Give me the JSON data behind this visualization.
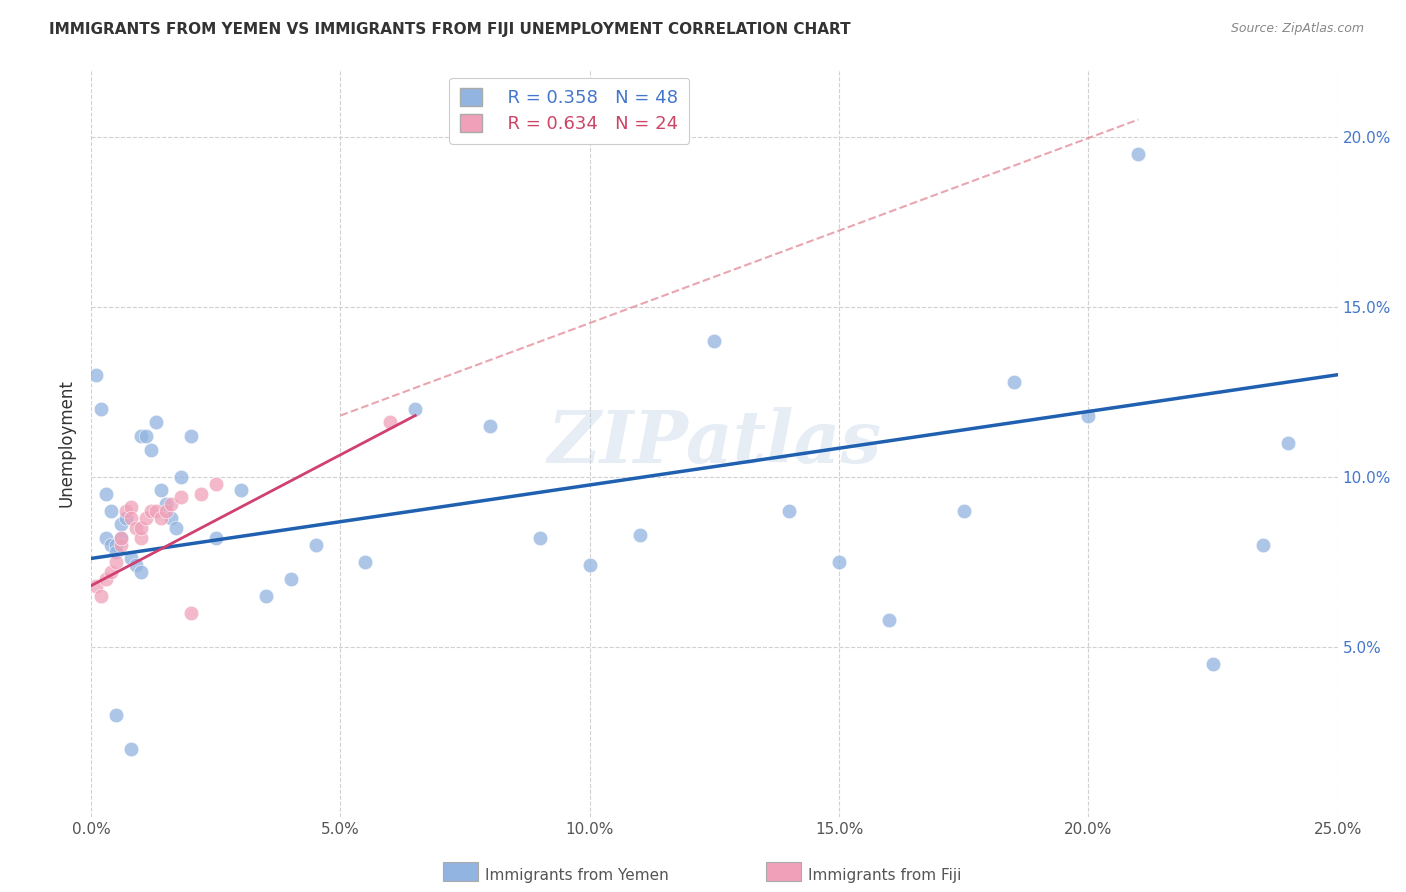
{
  "title": "IMMIGRANTS FROM YEMEN VS IMMIGRANTS FROM FIJI UNEMPLOYMENT CORRELATION CHART",
  "source": "Source: ZipAtlas.com",
  "ylabel": "Unemployment",
  "xlim": [
    0.0,
    0.25
  ],
  "ylim": [
    0.0,
    0.22
  ],
  "xtick_vals": [
    0.0,
    0.05,
    0.1,
    0.15,
    0.2,
    0.25
  ],
  "ytick_vals": [
    0.05,
    0.1,
    0.15,
    0.2
  ],
  "xtick_labels": [
    "0.0%",
    "5.0%",
    "10.0%",
    "15.0%",
    "20.0%",
    "25.0%"
  ],
  "ytick_labels": [
    "5.0%",
    "10.0%",
    "15.0%",
    "20.0%"
  ],
  "watermark": "ZIPatlas",
  "yemen_color": "#92b4e0",
  "fiji_color": "#f0a0b8",
  "yemen_line_color": "#2060b0",
  "fiji_line_color": "#d04070",
  "diag_line_color": "#e08090",
  "yemen_x": [
    0.001,
    0.002,
    0.003,
    0.003,
    0.004,
    0.004,
    0.005,
    0.005,
    0.006,
    0.006,
    0.007,
    0.008,
    0.009,
    0.01,
    0.01,
    0.011,
    0.012,
    0.013,
    0.014,
    0.015,
    0.016,
    0.017,
    0.018,
    0.02,
    0.025,
    0.03,
    0.035,
    0.04,
    0.045,
    0.055,
    0.065,
    0.08,
    0.09,
    0.1,
    0.11,
    0.125,
    0.14,
    0.15,
    0.16,
    0.175,
    0.185,
    0.2,
    0.21,
    0.225,
    0.235,
    0.24,
    0.005,
    0.008
  ],
  "yemen_y": [
    0.13,
    0.12,
    0.082,
    0.095,
    0.08,
    0.09,
    0.08,
    0.078,
    0.086,
    0.082,
    0.088,
    0.076,
    0.074,
    0.072,
    0.112,
    0.112,
    0.108,
    0.116,
    0.096,
    0.092,
    0.088,
    0.085,
    0.1,
    0.112,
    0.082,
    0.096,
    0.065,
    0.07,
    0.08,
    0.075,
    0.12,
    0.115,
    0.082,
    0.074,
    0.083,
    0.14,
    0.09,
    0.075,
    0.058,
    0.09,
    0.128,
    0.118,
    0.195,
    0.045,
    0.08,
    0.11,
    0.03,
    0.02
  ],
  "fiji_x": [
    0.001,
    0.002,
    0.003,
    0.004,
    0.005,
    0.006,
    0.006,
    0.007,
    0.008,
    0.008,
    0.009,
    0.01,
    0.01,
    0.011,
    0.012,
    0.013,
    0.014,
    0.015,
    0.016,
    0.018,
    0.02,
    0.022,
    0.025,
    0.06
  ],
  "fiji_y": [
    0.068,
    0.065,
    0.07,
    0.072,
    0.075,
    0.08,
    0.082,
    0.09,
    0.091,
    0.088,
    0.085,
    0.082,
    0.085,
    0.088,
    0.09,
    0.09,
    0.088,
    0.09,
    0.092,
    0.094,
    0.06,
    0.095,
    0.098,
    0.116
  ],
  "yemen_line_x": [
    0.0,
    0.25
  ],
  "yemen_line_y": [
    0.076,
    0.13
  ],
  "fiji_line_x": [
    0.0,
    0.065
  ],
  "fiji_line_y": [
    0.068,
    0.118
  ],
  "diag_line_x": [
    0.05,
    0.21
  ],
  "diag_line_y": [
    0.118,
    0.205
  ]
}
